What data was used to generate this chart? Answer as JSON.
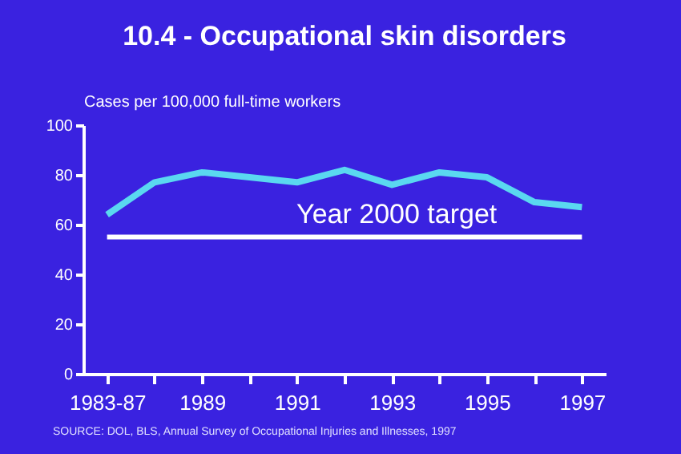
{
  "chart_data": {
    "type": "line",
    "title": "10.4 - Occupational skin disorders",
    "ylabel": "Cases per 100,000 full-time workers",
    "categories": [
      "1983-87",
      null,
      "1989",
      null,
      "1991",
      null,
      "1993",
      null,
      "1995",
      null,
      "1997"
    ],
    "series": [
      {
        "color": "#5ad8f0",
        "values": [
          64,
          77,
          81,
          79,
          77,
          82,
          76,
          81,
          79,
          69,
          67
        ]
      }
    ],
    "ylim": [
      0,
      100
    ],
    "yticks": [
      0,
      20,
      40,
      60,
      80,
      100
    ],
    "grid": false,
    "marker": "none",
    "line_style": "solid",
    "ref_lines": [
      {
        "axis": "y",
        "value": 55,
        "label": "Year 2000 target",
        "color": "#ffffff"
      }
    ],
    "annotations": [
      "SOURCE: DOL, BLS,  Annual Survey of Occupational Injuries and Illnesses, 1997"
    ]
  }
}
